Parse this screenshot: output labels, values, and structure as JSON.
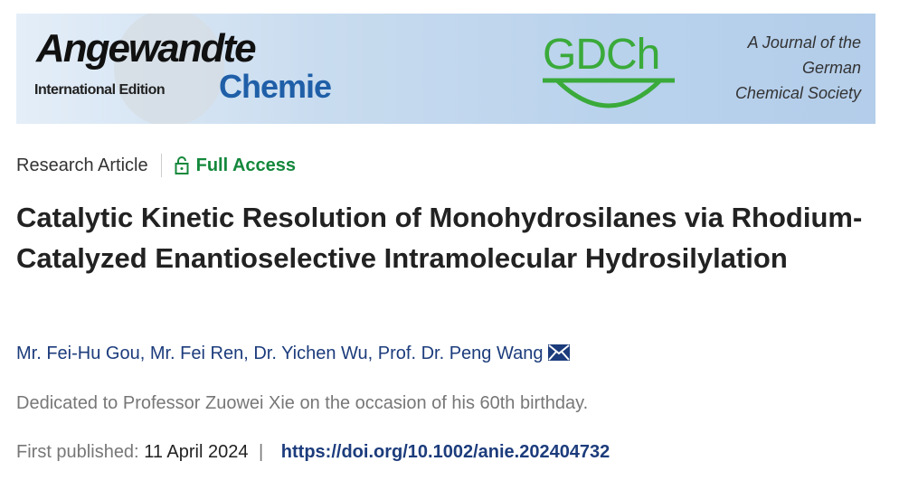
{
  "banner": {
    "journal_name": "Angewandte",
    "edition": "International Edition",
    "journal_subname": "Chemie",
    "society_logo": "GDCh",
    "society_tagline": [
      "A Journal of the",
      "German",
      "Chemical Society"
    ]
  },
  "meta": {
    "article_type": "Research Article",
    "access_label": "Full Access",
    "access_icon": "unlock-icon",
    "access_color": "#14883c"
  },
  "title": "Catalytic Kinetic Resolution of Monohydrosilanes via Rhodium-Catalyzed Enantioselective Intramolecular Hydrosilylation",
  "authors": [
    "Mr. Fei-Hu Gou",
    "Mr. Fei Ren",
    "Dr. Yichen Wu",
    "Prof. Dr. Peng Wang"
  ],
  "author_separator": ", ",
  "dedication": "Dedicated to Professor Zuowei Xie on the occasion of his 60th birthday.",
  "published": {
    "label": "First published:",
    "date": "11 April 2024",
    "separator": "|",
    "doi": "https://doi.org/10.1002/anie.202404732"
  }
}
